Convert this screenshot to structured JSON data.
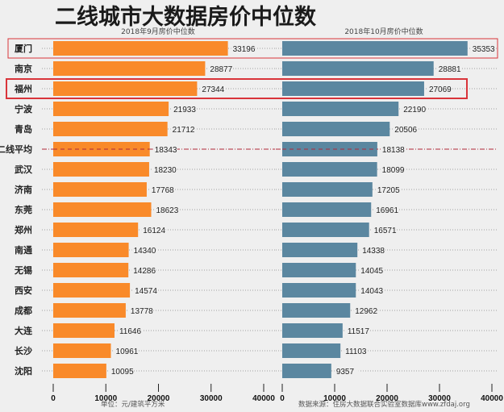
{
  "chart_data": {
    "type": "bar",
    "orientation": "horizontal",
    "title": "二线城市大数据房价中位数",
    "categories": [
      "厦门",
      "南京",
      "福州",
      "宁波",
      "青岛",
      "二线平均",
      "武汉",
      "济南",
      "东莞",
      "郑州",
      "南通",
      "无锡",
      "西安",
      "成都",
      "大连",
      "长沙",
      "沈阳"
    ],
    "series": [
      {
        "name": "2018年9月房价中位数",
        "color": "#f98a2a",
        "values": [
          33196,
          28877,
          27344,
          21933,
          21712,
          18343,
          18230,
          17768,
          18623,
          16124,
          14340,
          14286,
          14574,
          13778,
          11646,
          10961,
          10095
        ]
      },
      {
        "name": "2018年10月房价中位数",
        "color": "#5b87a0",
        "values": [
          35353,
          28881,
          27069,
          22190,
          20506,
          18138,
          18099,
          17205,
          16961,
          16571,
          14338,
          14045,
          14043,
          12962,
          11517,
          11103,
          9357
        ]
      }
    ],
    "xlim": [
      0,
      40000
    ],
    "xticks": [
      "0",
      "10000",
      "20000",
      "30000",
      "40000"
    ],
    "highlighted": [
      "厦门",
      "福州"
    ],
    "highlight_color": "#d9343a",
    "average_category": "二线平均",
    "unit_note": "单位：元/建筑平方米",
    "source_note": "数据来源：住房大数据联合实验室数据库www.zfdaj.org"
  }
}
